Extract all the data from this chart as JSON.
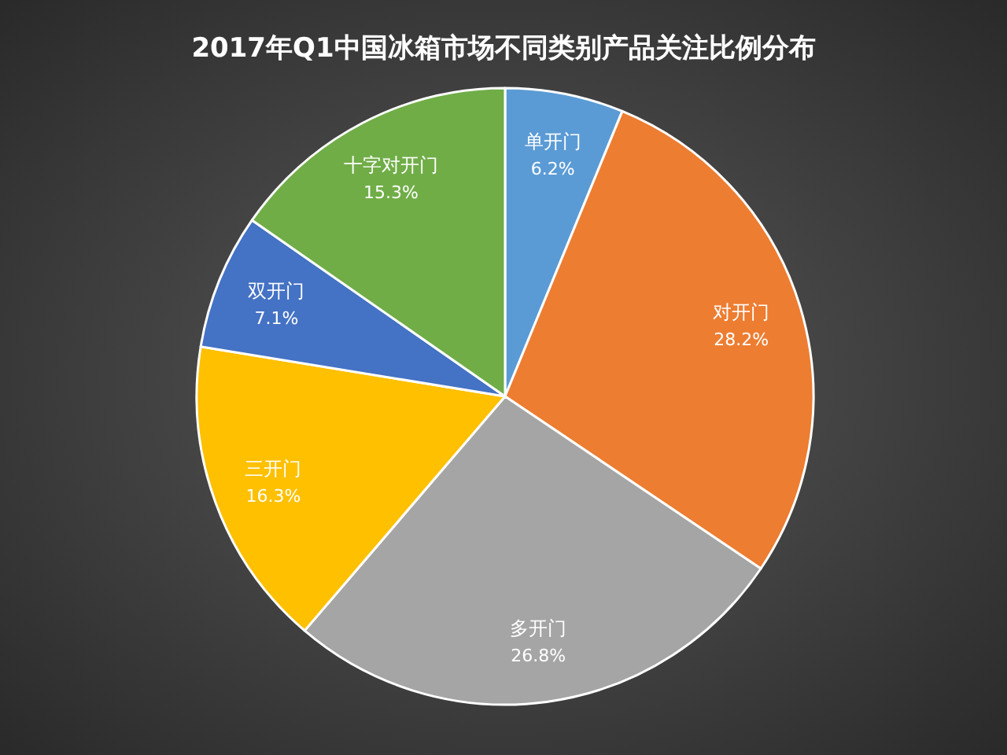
{
  "chart_data": {
    "type": "pie",
    "title": "2017年Q1中国冰箱市场不同类别产品关注比例分布",
    "categories": [
      "单开门",
      "对开门",
      "多开门",
      "三开门",
      "双开门",
      "十字对开门"
    ],
    "values": [
      6.2,
      28.2,
      26.8,
      16.3,
      7.1,
      15.3
    ],
    "value_labels": [
      "6.2%",
      "28.2%",
      "26.8%",
      "16.3%",
      "7.1%",
      "15.3%"
    ],
    "colors": [
      "#5b9bd5",
      "#ed7d31",
      "#a5a5a5",
      "#ffc000",
      "#4472c4",
      "#70ad47"
    ]
  }
}
